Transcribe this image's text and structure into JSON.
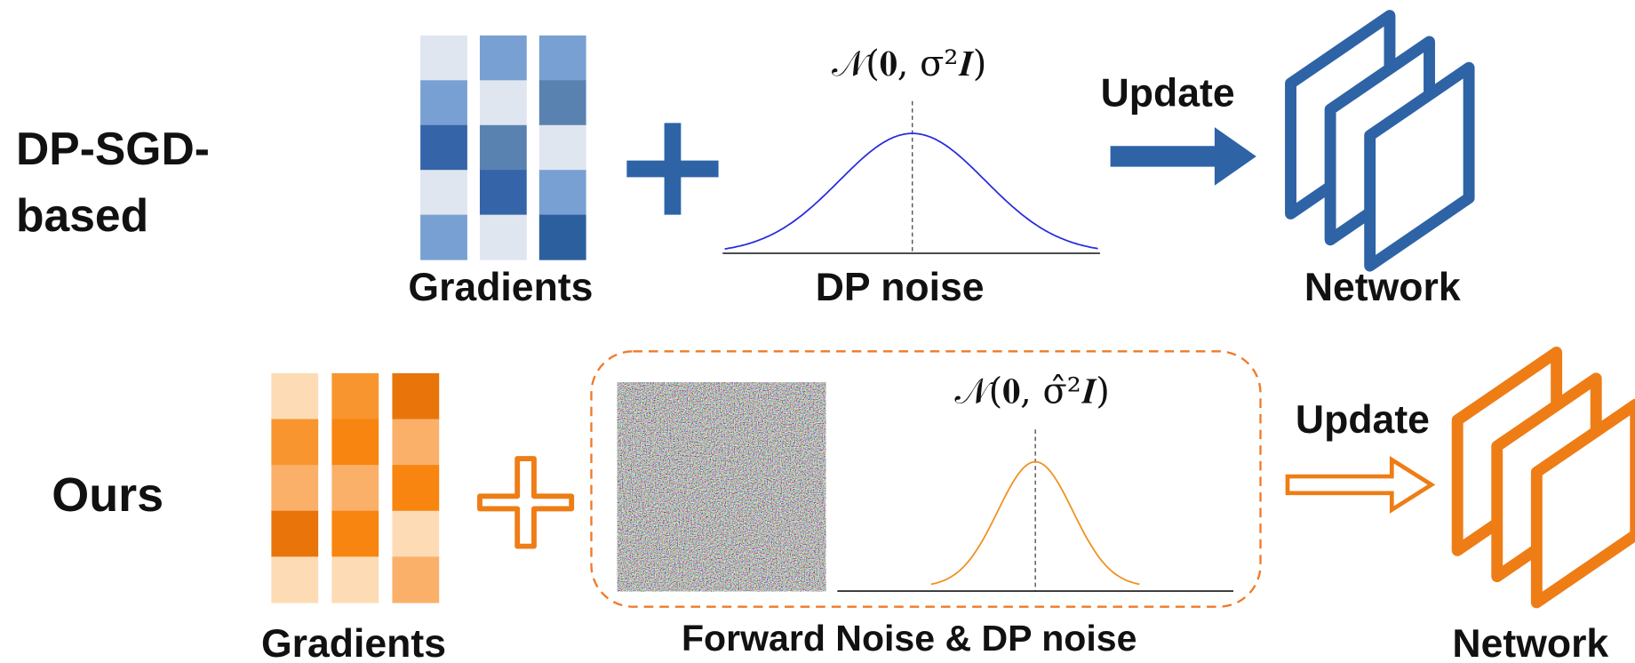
{
  "top": {
    "label_lines": [
      "DP-SGD-",
      "based"
    ],
    "gradients": "Gradients",
    "formula": "𝒩(𝟎, σ²𝑰)",
    "noise": "DP noise",
    "update": "Update",
    "network": "Network"
  },
  "bottom": {
    "label": "Ours",
    "gradients": "Gradients",
    "formula": "𝒩(𝟎, σ̂²𝑰)",
    "noise": "Forward Noise & DP noise",
    "update": "Update",
    "network": "Network"
  }
}
